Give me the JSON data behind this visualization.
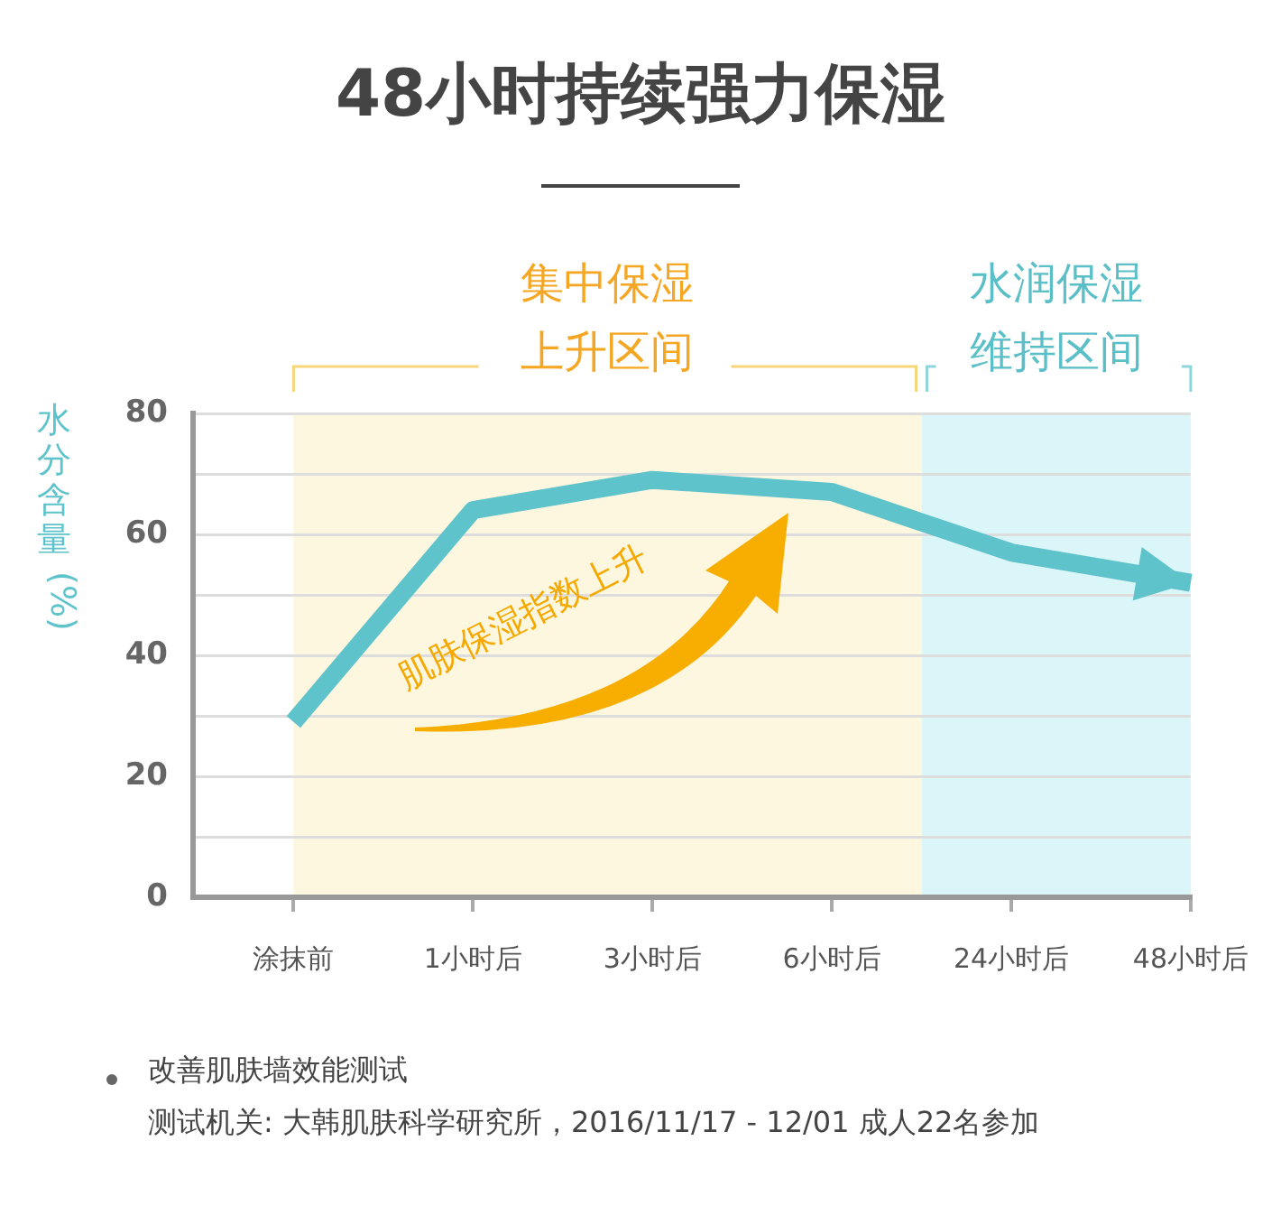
{
  "chart_data": {
    "type": "line",
    "title": "48小时持续强力保湿",
    "ylabel": "水分含量(%)",
    "categories": [
      "涂抹前",
      "1小时后",
      "3小时后",
      "6小时后",
      "24小时后",
      "48小时后"
    ],
    "series": [
      {
        "color": "#5ec3cb",
        "values": [
          29,
          64,
          69,
          67,
          57,
          52
        ]
      }
    ],
    "ylim": [
      0,
      80
    ],
    "yticks": [
      0,
      {
        "value": 10,
        "label": null
      },
      20,
      {
        "value": 30,
        "label": null
      },
      40,
      {
        "value": 50,
        "label": null
      },
      60,
      {
        "value": 70,
        "label": null
      },
      80
    ],
    "grid": "y",
    "legend": false,
    "marker": "none",
    "line_style": "solid",
    "bands": [
      {
        "axis": "x",
        "from": "涂抹前",
        "to": "6小时后",
        "label": "集中保湿上升区间",
        "color": "#fdf7df"
      },
      {
        "axis": "x",
        "from": "24小时后",
        "to": "48小时后",
        "label": "水润保湿维持区间",
        "color": "#dbf6f9"
      }
    ],
    "annotations": [
      "肌肤保湿指数上升",
      "改善肌肤墙效能测试",
      "测试机关: 大韩肌肤科学研究所，2016/11/17 - 12/01  成人22名参加"
    ]
  }
}
